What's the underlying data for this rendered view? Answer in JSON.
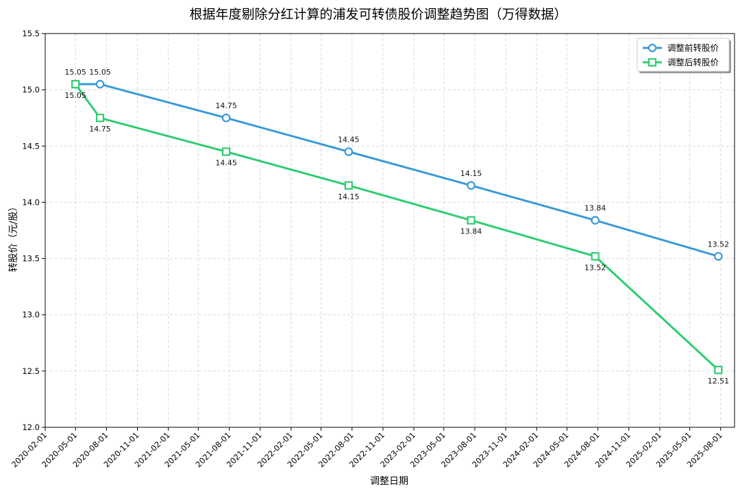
{
  "chart_data": {
    "type": "line",
    "title": "根据年度剔除分红计算的浦发可转债股价调整趋势图（万得数据）",
    "xlabel": "调整日期",
    "ylabel": "转股价（元/股）",
    "ylim": [
      12.0,
      15.5
    ],
    "yticks": [
      "12.0",
      "12.5",
      "13.0",
      "13.5",
      "14.0",
      "14.5",
      "15.0",
      "15.5"
    ],
    "xlim": [
      "2020-02-01",
      "2025-08-01"
    ],
    "xticks": [
      "2020-02-01",
      "2020-05-01",
      "2020-08-01",
      "2020-11-01",
      "2021-02-01",
      "2021-05-01",
      "2021-08-01",
      "2021-11-01",
      "2022-02-01",
      "2022-05-01",
      "2022-08-01",
      "2022-11-01",
      "2023-02-01",
      "2023-05-01",
      "2023-08-01",
      "2023-11-01",
      "2024-02-01",
      "2024-05-01",
      "2024-08-01",
      "2024-11-01",
      "2025-02-01",
      "2025-05-01",
      "2025-08-01"
    ],
    "grid": true,
    "legend_position": "top-right",
    "series": [
      {
        "name": "调整前转股价",
        "color": "#3a9ad9",
        "marker": "circle",
        "x": [
          "2020-05-01",
          "2020-07-13",
          "2021-07-23",
          "2022-07-22",
          "2023-07-21",
          "2024-07-24",
          "2025-07-25"
        ],
        "values": [
          15.05,
          15.05,
          14.75,
          14.45,
          14.15,
          13.84,
          13.52
        ],
        "labels": [
          null,
          "15.05",
          "14.75",
          "14.45",
          "14.15",
          "13.84",
          "13.52"
        ],
        "label_position": "above"
      },
      {
        "name": "调整后转股价",
        "color": "#2ecc71",
        "marker": "square",
        "x": [
          "2020-05-01",
          "2020-07-13",
          "2021-07-23",
          "2022-07-22",
          "2023-07-21",
          "2024-07-24",
          "2025-07-25"
        ],
        "values": [
          15.05,
          14.75,
          14.45,
          14.15,
          13.84,
          13.52,
          12.51
        ],
        "labels": [
          "15.05",
          "14.75",
          "14.45",
          "14.15",
          "13.84",
          "13.52",
          "12.51"
        ],
        "label_position": "below"
      }
    ],
    "extra_labels": [
      {
        "x": "2020-05-01",
        "y": 15.05,
        "text": "15.05",
        "position": "above"
      }
    ]
  }
}
